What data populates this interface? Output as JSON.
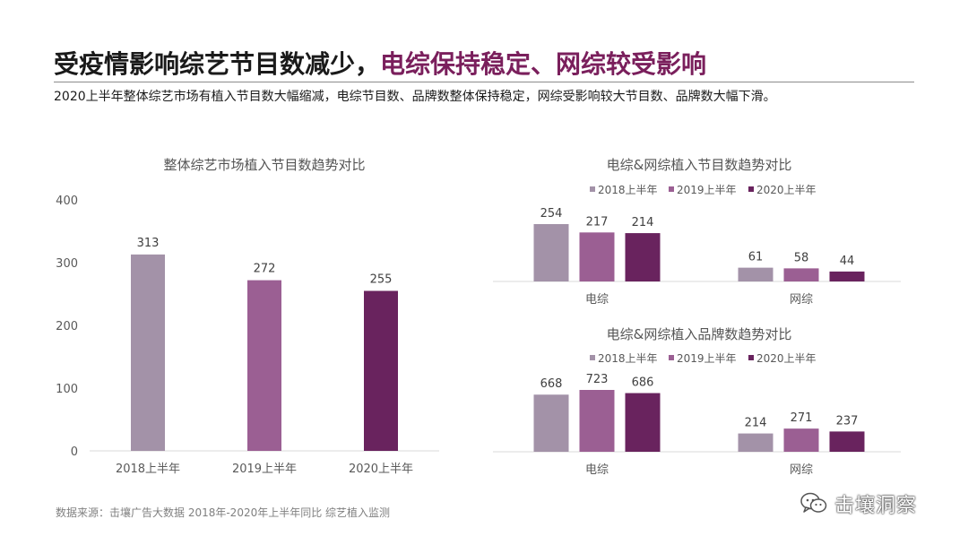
{
  "header": {
    "title_part1": "受疫情影响综艺节目数减少，",
    "title_part2": "电综保持稳定、网综较受影响",
    "subtitle": "2020上半年整体综艺市场有植入节目数大幅缩减，电综节目数、品牌数整体保持稳定，网综受影响较大节目数、品牌数大幅下滑。"
  },
  "footer": {
    "source": "数据来源：击壤广告大数据 2018年-2020年上半年同比 综艺植入监测",
    "watermark": "击壤洞察"
  },
  "colors": {
    "title_accent": "#7a1f5c",
    "series": [
      "#a392a8",
      "#9b5f93",
      "#69235e"
    ]
  },
  "chart_data": [
    {
      "type": "bar",
      "title": "整体综艺市场植入节目数趋势对比",
      "categories": [
        "2018上半年",
        "2019上半年",
        "2020上半年"
      ],
      "values": [
        313,
        272,
        255
      ],
      "ylim": [
        0,
        400
      ],
      "yticks": [
        "0",
        "100",
        "200",
        "300",
        "400"
      ],
      "grid": false,
      "legend": "none"
    },
    {
      "type": "bar",
      "title": "电综&网综植入节目数趋势对比",
      "categories": [
        "电综",
        "网综"
      ],
      "series": [
        {
          "name": "2018上半年",
          "values": [
            254,
            61
          ]
        },
        {
          "name": "2019上半年",
          "values": [
            217,
            58
          ]
        },
        {
          "name": "2020上半年",
          "values": [
            214,
            44
          ]
        }
      ],
      "legend": "top"
    },
    {
      "type": "bar",
      "title": "电综&网综植入品牌数趋势对比",
      "categories": [
        "电综",
        "网综"
      ],
      "series": [
        {
          "name": "2018上半年",
          "values": [
            668,
            214
          ]
        },
        {
          "name": "2019上半年",
          "values": [
            723,
            271
          ]
        },
        {
          "name": "2020上半年",
          "values": [
            686,
            237
          ]
        }
      ],
      "legend": "top"
    }
  ]
}
